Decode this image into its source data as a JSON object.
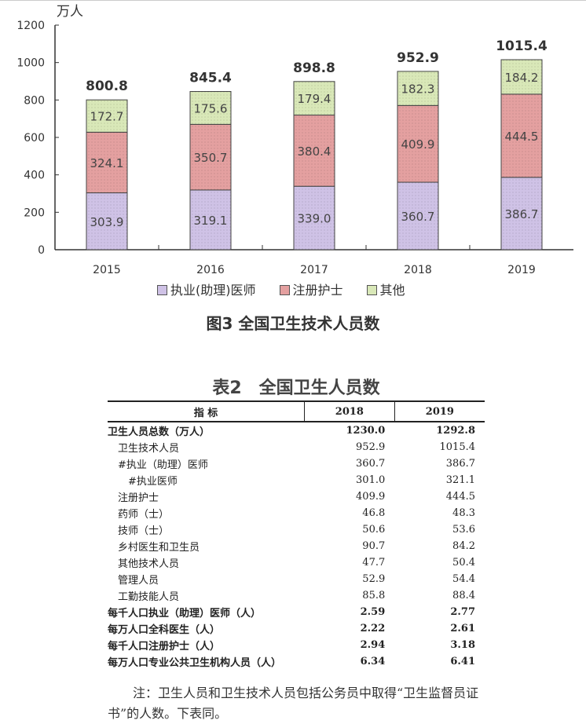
{
  "chart_data": {
    "type": "bar",
    "stacked": true,
    "title": "图3  全国卫生技术人员数",
    "ylabel": "万人",
    "ylim": [
      0,
      1200
    ],
    "yticks": [
      0,
      200,
      400,
      600,
      800,
      1000,
      1200
    ],
    "categories": [
      "2015",
      "2016",
      "2017",
      "2018",
      "2019"
    ],
    "series": [
      {
        "name": "执业(助理)医师",
        "values": [
          303.9,
          319.1,
          339.0,
          360.7,
          386.7
        ],
        "color": "#cfc2e6"
      },
      {
        "name": "注册护士",
        "values": [
          324.1,
          350.7,
          380.4,
          409.9,
          444.5
        ],
        "color": "#e4a0a0"
      },
      {
        "name": "其他",
        "values": [
          172.7,
          175.6,
          179.4,
          182.3,
          184.2
        ],
        "color": "#d9e8b8"
      }
    ],
    "totals": [
      "800.8",
      "845.4",
      "898.8",
      "952.9",
      "1015.4"
    ],
    "legend": "bottom",
    "grid": false
  },
  "table": {
    "title": "表2　全国卫生人员数",
    "headers": [
      "指  标",
      "2018",
      "2019"
    ],
    "rows": [
      {
        "label": "卫生人员总数（万人）",
        "v2018": "1230.0",
        "v2019": "1292.8",
        "bold": true,
        "indent": 0
      },
      {
        "label": "卫生技术人员",
        "v2018": "952.9",
        "v2019": "1015.4",
        "indent": 1
      },
      {
        "label": "#执业（助理）医师",
        "v2018": "360.7",
        "v2019": "386.7",
        "indent": 1
      },
      {
        "label": "#执业医师",
        "v2018": "301.0",
        "v2019": "321.1",
        "indent": 2
      },
      {
        "label": "注册护士",
        "v2018": "409.9",
        "v2019": "444.5",
        "indent": 1
      },
      {
        "label": "药师（士）",
        "v2018": "46.8",
        "v2019": "48.3",
        "indent": 1
      },
      {
        "label": "技师（士）",
        "v2018": "50.6",
        "v2019": "53.6",
        "indent": 1
      },
      {
        "label": "乡村医生和卫生员",
        "v2018": "90.7",
        "v2019": "84.2",
        "indent": 1
      },
      {
        "label": "其他技术人员",
        "v2018": "47.7",
        "v2019": "50.4",
        "indent": 1
      },
      {
        "label": "管理人员",
        "v2018": "52.9",
        "v2019": "54.4",
        "indent": 1
      },
      {
        "label": "工勤技能人员",
        "v2018": "85.8",
        "v2019": "88.4",
        "indent": 1
      },
      {
        "label": "每千人口执业（助理）医师（人）",
        "v2018": "2.59",
        "v2019": "2.77",
        "bold": true,
        "indent": 0
      },
      {
        "label": "每万人口全科医生（人）",
        "v2018": "2.22",
        "v2019": "2.61",
        "bold": true,
        "indent": 0
      },
      {
        "label": "每千人口注册护士（人）",
        "v2018": "2.94",
        "v2019": "3.18",
        "bold": true,
        "indent": 0
      },
      {
        "label": "每万人口专业公共卫生机构人员（人）",
        "v2018": "6.34",
        "v2019": "6.41",
        "bold": true,
        "indent": 0
      }
    ],
    "note": "注：卫生人员和卫生技术人员包括公务员中取得“卫生监督员证书”的人数。下表同。"
  }
}
